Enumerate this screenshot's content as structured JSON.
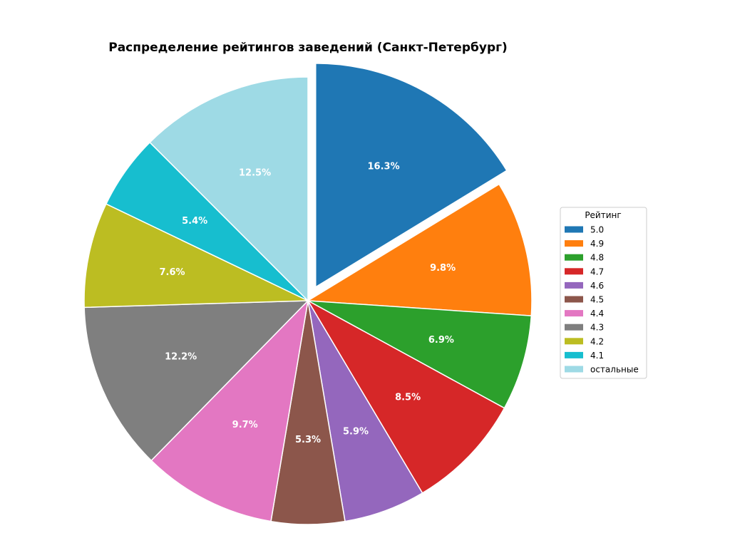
{
  "chart_data": {
    "type": "pie",
    "title": "Распределение рейтингов заведений (Санкт-Петербург)",
    "legend_title": "Рейтинг",
    "legend_placement": "right",
    "start_angle_deg": 90,
    "direction": "clockwise",
    "exploded": [
      "5.0"
    ],
    "slices": [
      {
        "label": "5.0",
        "value": 16.3,
        "display": "16.3%",
        "color": "#1f77b4"
      },
      {
        "label": "4.9",
        "value": 9.8,
        "display": "9.8%",
        "color": "#ff7f0e"
      },
      {
        "label": "4.8",
        "value": 6.9,
        "display": "6.9%",
        "color": "#2ca02c"
      },
      {
        "label": "4.7",
        "value": 8.5,
        "display": "8.5%",
        "color": "#d62728"
      },
      {
        "label": "4.6",
        "value": 5.9,
        "display": "5.9%",
        "color": "#9467bd"
      },
      {
        "label": "4.5",
        "value": 5.3,
        "display": "5.3%",
        "color": "#8c564b"
      },
      {
        "label": "4.4",
        "value": 9.7,
        "display": "9.7%",
        "color": "#e377c2"
      },
      {
        "label": "4.3",
        "value": 12.2,
        "display": "12.2%",
        "color": "#7f7f7f"
      },
      {
        "label": "4.2",
        "value": 7.6,
        "display": "7.6%",
        "color": "#bcbd22"
      },
      {
        "label": "4.1",
        "value": 5.4,
        "display": "5.4%",
        "color": "#17becf"
      },
      {
        "label": "остальные",
        "value": 12.5,
        "display": "12.5%",
        "color": "#9edae5"
      }
    ]
  }
}
